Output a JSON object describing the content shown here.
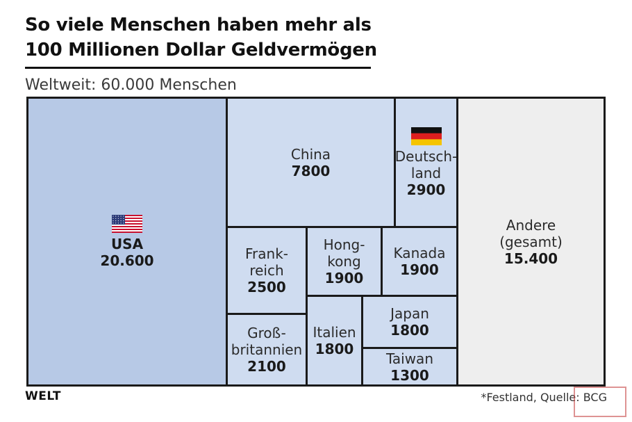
{
  "header": {
    "title_line1": "So viele Menschen haben mehr als",
    "title_line2": "100 Millionen Dollar Geldvermögen",
    "subtitle": "Weltweit: 60.000 Menschen"
  },
  "footer": {
    "logo": "WELT",
    "footnote": "*Festland, Quelle: BCG"
  },
  "colors": {
    "usa": "#b7c9e6",
    "light_blue": "#cfdcf0",
    "other": "#eeeeee",
    "border": "#1a1a1a"
  },
  "chart_data": {
    "type": "treemap",
    "title": "So viele Menschen haben mehr als 100 Millionen Dollar Geldvermögen",
    "subtitle": "Weltweit: 60.000 Menschen",
    "total": 60000,
    "items": [
      {
        "name": "USA",
        "value": 20600,
        "value_label": "20.600",
        "flag": "usa"
      },
      {
        "name": "China",
        "value": 7800,
        "value_label": "7800"
      },
      {
        "name": "Deutsch-\nland",
        "value": 2900,
        "value_label": "2900",
        "flag": "germany"
      },
      {
        "name": "Andere\n(gesamt)",
        "value": 15400,
        "value_label": "15.400"
      },
      {
        "name": "Frank-\nreich",
        "value": 2500,
        "value_label": "2500"
      },
      {
        "name": "Hong-\nkong",
        "value": 1900,
        "value_label": "1900"
      },
      {
        "name": "Kanada",
        "value": 1900,
        "value_label": "1900"
      },
      {
        "name": "Groß-\nbritannien",
        "value": 2100,
        "value_label": "2100"
      },
      {
        "name": "Italien",
        "value": 1800,
        "value_label": "1800"
      },
      {
        "name": "Japan",
        "value": 1800,
        "value_label": "1800"
      },
      {
        "name": "Taiwan",
        "value": 1300,
        "value_label": "1300"
      }
    ]
  }
}
